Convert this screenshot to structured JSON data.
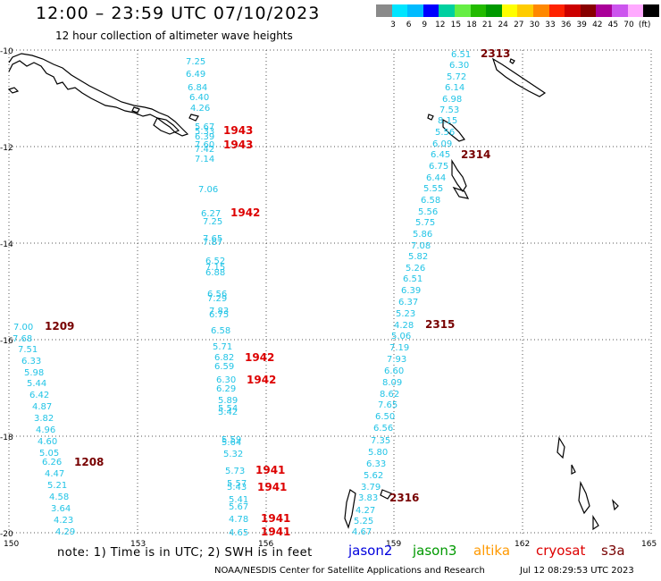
{
  "title": "12:00 – 23:59 UTC 07/10/2023",
  "subtitle": "12 hour collection of altimeter wave heights",
  "legend": {
    "colors": [
      "#8a8a8a",
      "#00e5ff",
      "#00bbff",
      "#0000ff",
      "#00d0a0",
      "#66ee44",
      "#22bb00",
      "#009900",
      "#ffff00",
      "#ffcc00",
      "#ff8800",
      "#ff2200",
      "#cc0000",
      "#880000",
      "#aa0099",
      "#cc55ee",
      "#ffaaff",
      "#000000"
    ],
    "labels": [
      "3",
      "6",
      "9",
      "12",
      "15",
      "18",
      "21",
      "24",
      "27",
      "30",
      "33",
      "36",
      "39",
      "42",
      "45",
      "70",
      "(ft)"
    ]
  },
  "axes": {
    "lon_ticks": [
      "150",
      "153",
      "156",
      "159",
      "162",
      "165"
    ],
    "lat_ticks": [
      "-10",
      "-12",
      "-14",
      "-16",
      "-18",
      "-20"
    ]
  },
  "tracks": [
    {
      "id": "1943",
      "color": "#dd0000",
      "label_pos": [
        250,
        150
      ],
      "points": [
        [
          208,
          72,
          "7.25"
        ],
        [
          208,
          86,
          "6.49"
        ],
        [
          210,
          101,
          "6.84"
        ],
        [
          212,
          112,
          "6.40"
        ],
        [
          213,
          124,
          "4.26"
        ],
        [
          218,
          145,
          "5.67"
        ],
        [
          218,
          150,
          "5.33"
        ],
        [
          218,
          156,
          "6.39"
        ],
        [
          218,
          165,
          "7.60"
        ],
        [
          218,
          170,
          "7.42"
        ],
        [
          218,
          181,
          "7.14"
        ]
      ]
    },
    {
      "id": "1943",
      "color": "#dd0000",
      "label_pos": [
        250,
        166
      ],
      "points": []
    },
    {
      "id": "1942",
      "color": "#dd0000",
      "label_pos": [
        258,
        242
      ],
      "points": [
        [
          222,
          215,
          "7.06"
        ],
        [
          225,
          242,
          "6.27"
        ],
        [
          227,
          251,
          "7.25"
        ],
        [
          227,
          270,
          "7.65"
        ],
        [
          227,
          274,
          "7.87"
        ],
        [
          230,
          295,
          "6.52"
        ],
        [
          230,
          302,
          "7.15"
        ],
        [
          230,
          308,
          "6.88"
        ],
        [
          232,
          332,
          "6.56"
        ],
        [
          232,
          337,
          "7.29"
        ],
        [
          234,
          351,
          "7.83"
        ],
        [
          234,
          355,
          "6.75"
        ],
        [
          236,
          373,
          "6.58"
        ],
        [
          238,
          391,
          "5.71"
        ],
        [
          240,
          403,
          "6.82"
        ],
        [
          240,
          413,
          "6.59"
        ]
      ]
    },
    {
      "id": "1942",
      "color": "#dd0000",
      "label_pos": [
        274,
        404
      ],
      "points": []
    },
    {
      "id": "1942",
      "color": "#dd0000",
      "label_pos": [
        276,
        429
      ],
      "points": [
        [
          242,
          428,
          "6.30"
        ],
        [
          242,
          438,
          "6.29"
        ],
        [
          244,
          451,
          "5.89"
        ],
        [
          244,
          460,
          "5.54"
        ],
        [
          244,
          464,
          "5.42"
        ]
      ]
    },
    {
      "id": "1941",
      "color": "#dd0000",
      "label_pos": [
        286,
        530
      ],
      "points": [
        [
          248,
          495,
          "5.59"
        ],
        [
          248,
          498,
          "5.64"
        ],
        [
          250,
          511,
          "5.32"
        ],
        [
          252,
          530,
          "5.73"
        ],
        [
          254,
          544,
          "5.57"
        ],
        [
          254,
          548,
          "5.43"
        ],
        [
          256,
          562,
          "5.41"
        ],
        [
          256,
          570,
          "5.67"
        ],
        [
          256,
          584,
          "4.78"
        ],
        [
          256,
          599,
          "4.65"
        ]
      ]
    },
    {
      "id": "1941",
      "color": "#dd0000",
      "label_pos": [
        288,
        549
      ],
      "points": []
    },
    {
      "id": "1941",
      "color": "#dd0000",
      "label_pos": [
        292,
        584
      ],
      "points": []
    },
    {
      "id": "1941",
      "color": "#dd0000",
      "label_pos": [
        292,
        599
      ],
      "points": []
    },
    {
      "id": "2313",
      "color": "#770000",
      "label_pos": [
        538,
        64
      ],
      "points": [
        [
          505,
          64,
          "6.51"
        ],
        [
          503,
          76,
          "6.30"
        ],
        [
          500,
          89,
          "5.72"
        ],
        [
          498,
          101,
          "6.14"
        ],
        [
          495,
          114,
          "6.98"
        ],
        [
          492,
          126,
          "7.53"
        ],
        [
          490,
          138,
          "8.15"
        ],
        [
          487,
          151,
          "5.56"
        ],
        [
          484,
          164,
          "6.09"
        ],
        [
          482,
          176,
          "6.45"
        ]
      ]
    },
    {
      "id": "2314",
      "color": "#770000",
      "label_pos": [
        516,
        177
      ],
      "points": [
        [
          480,
          189,
          "6.75"
        ],
        [
          477,
          202,
          "6.44"
        ],
        [
          474,
          214,
          "5.55"
        ],
        [
          471,
          227,
          "6.58"
        ],
        [
          468,
          240,
          "5.56"
        ],
        [
          465,
          252,
          "5.75"
        ],
        [
          462,
          265,
          "5.86"
        ],
        [
          460,
          278,
          "7.08"
        ],
        [
          457,
          290,
          "5.82"
        ],
        [
          454,
          303,
          "5.26"
        ],
        [
          451,
          315,
          "6.51"
        ],
        [
          449,
          328,
          "6.39"
        ],
        [
          446,
          341,
          "6.37"
        ],
        [
          443,
          354,
          "5.23"
        ],
        [
          441,
          367,
          "4.28"
        ],
        [
          438,
          379,
          "5.06"
        ],
        [
          436,
          392,
          "7.19"
        ],
        [
          433,
          405,
          "7.93"
        ],
        [
          430,
          418,
          "6.60"
        ],
        [
          428,
          431,
          "8.09"
        ],
        [
          425,
          444,
          "8.62"
        ],
        [
          423,
          456,
          "7.65"
        ],
        [
          420,
          469,
          "6.50"
        ],
        [
          418,
          482,
          "6.56"
        ],
        [
          415,
          496,
          "7.35"
        ],
        [
          412,
          509,
          "5.80"
        ],
        [
          410,
          522,
          "6.33"
        ],
        [
          407,
          535,
          "5.62"
        ],
        [
          404,
          548,
          "3.79"
        ],
        [
          401,
          560,
          "3.83"
        ],
        [
          398,
          574,
          "4.27"
        ],
        [
          396,
          586,
          "5.25"
        ],
        [
          394,
          598,
          "4.67"
        ]
      ]
    },
    {
      "id": "2315",
      "color": "#770000",
      "label_pos": [
        476,
        367
      ],
      "points": []
    },
    {
      "id": "2316",
      "color": "#770000",
      "label_pos": [
        436,
        561
      ],
      "points": []
    },
    {
      "id": "1209",
      "color": "#770000",
      "label_pos": [
        50,
        369
      ],
      "points": [
        [
          15,
          369,
          "7.00"
        ],
        [
          14,
          382,
          "7.68"
        ],
        [
          20,
          394,
          "7.51"
        ],
        [
          24,
          407,
          "6.33"
        ],
        [
          27,
          420,
          "5.98"
        ],
        [
          30,
          432,
          "5.44"
        ],
        [
          33,
          445,
          "6.42"
        ],
        [
          36,
          458,
          "4.87"
        ],
        [
          38,
          471,
          "3.82"
        ],
        [
          40,
          484,
          "4.96"
        ],
        [
          42,
          497,
          "4.60"
        ],
        [
          44,
          510,
          "5.05"
        ]
      ]
    },
    {
      "id": "1208",
      "color": "#770000",
      "label_pos": [
        83,
        521
      ],
      "points": [
        [
          47,
          520,
          "6.26"
        ],
        [
          50,
          533,
          "4.47"
        ],
        [
          53,
          546,
          "5.21"
        ],
        [
          55,
          559,
          "4.58"
        ],
        [
          57,
          572,
          "3.64"
        ],
        [
          60,
          585,
          "4.23"
        ],
        [
          62,
          598,
          "4.29"
        ]
      ]
    }
  ],
  "note": "note: 1) Time is in UTC; 2) SWH is in feet",
  "satellites": [
    {
      "name": "jason2",
      "color": "#0000dd"
    },
    {
      "name": "jason3",
      "color": "#009900"
    },
    {
      "name": "altika",
      "color": "#ff9900"
    },
    {
      "name": "cryosat",
      "color": "#dd0000"
    },
    {
      "name": "s3a",
      "color": "#770000"
    }
  ],
  "credit": "NOAA/NESDIS Center for Satellite Applications and Research",
  "timestamp": "Jul 12 08:29:53 UTC 2023"
}
